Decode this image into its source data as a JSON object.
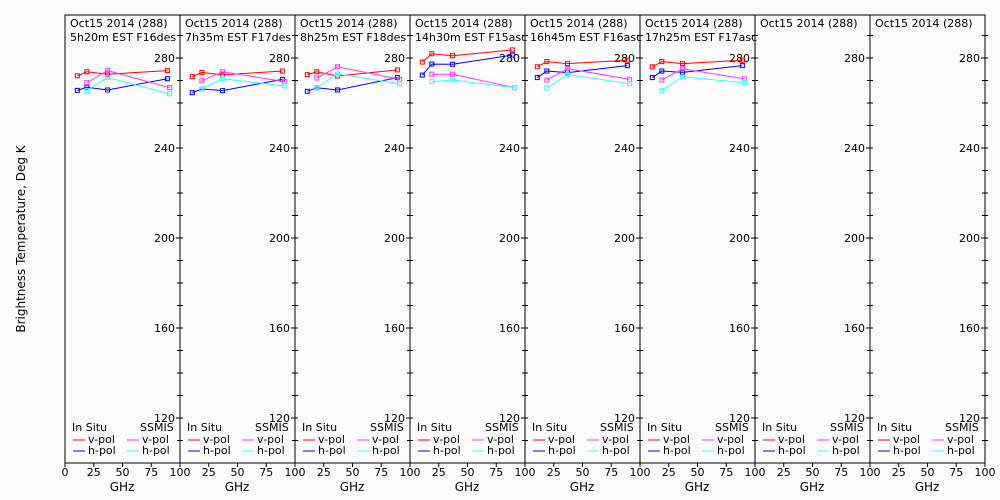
{
  "chart_data": {
    "type": "line",
    "ylabel": "Brightness Temperature, Deg K",
    "xlabel": "GHz",
    "xlim": [
      0,
      100
    ],
    "ylim": [
      100,
      300
    ],
    "xticks": [
      0,
      25,
      50,
      75,
      100
    ],
    "yticks": [
      120,
      160,
      200,
      240,
      280
    ],
    "legend": {
      "insitu_label": "In Situ",
      "ssmis_label": "SSMIS",
      "v_label": "v-pol",
      "h_label": "h-pol",
      "placement": "bottom"
    },
    "colors": {
      "insitu_v": "#ff0000",
      "insitu_h": "#0000ff",
      "ssmis_v": "#ff33ff",
      "ssmis_h": "#33ffff"
    },
    "insitu_freqs": [
      10.7,
      19,
      37,
      89
    ],
    "ssmis_freqs": [
      19,
      37,
      91
    ],
    "panels": [
      {
        "title": "Oct15 2014 (288)",
        "subtitle": "5h20m EST F16des",
        "insitu_v": [
          272.1,
          273.9,
          272.8,
          274.4
        ],
        "insitu_h": [
          265.6,
          267.0,
          265.8,
          270.8
        ],
        "ssmis_v": [
          269.0,
          274.4,
          266.8
        ],
        "ssmis_h": [
          265.5,
          271.3,
          264.1
        ]
      },
      {
        "title": "Oct15 2014 (288)",
        "subtitle": "7h35m EST F17des",
        "insitu_v": [
          271.7,
          273.6,
          272.5,
          274.2
        ],
        "insitu_h": [
          264.6,
          266.2,
          265.5,
          270.5
        ],
        "ssmis_v": [
          269.9,
          273.9,
          269.5
        ],
        "ssmis_h": [
          266.2,
          270.8,
          267.6
        ]
      },
      {
        "title": "Oct15 2014 (288)",
        "subtitle": "8h25m EST F18des",
        "insitu_v": [
          272.6,
          273.9,
          272.0,
          274.7
        ],
        "insitu_h": [
          265.2,
          266.8,
          265.8,
          271.3
        ],
        "ssmis_v": [
          271.1,
          276.1,
          270.5
        ],
        "ssmis_h": [
          266.8,
          272.9,
          268.6
        ]
      },
      {
        "title": "Oct15 2014 (288)",
        "subtitle": "14h30m EST F15asc",
        "insitu_v": [
          278.2,
          281.9,
          281.0,
          283.6
        ],
        "insitu_h": [
          272.4,
          277.3,
          277.2,
          281.3
        ],
        "ssmis_v": [
          272.8,
          272.8,
          266.8
        ],
        "ssmis_h": [
          269.5,
          270.2,
          266.8
        ]
      },
      {
        "title": "Oct15 2014 (288)",
        "subtitle": "16h45m EST F16asc",
        "insitu_v": [
          276.1,
          278.4,
          277.5,
          279.0
        ],
        "insitu_h": [
          271.3,
          274.2,
          273.5,
          276.6
        ],
        "ssmis_v": [
          270.2,
          275.3,
          270.5
        ],
        "ssmis_h": [
          266.7,
          272.6,
          268.6
        ]
      },
      {
        "title": "Oct15 2014 (288)",
        "subtitle": "17h25m EST F17asc",
        "insitu_v": [
          276.1,
          278.4,
          277.5,
          279.0
        ],
        "insitu_h": [
          271.3,
          274.2,
          273.6,
          276.6
        ],
        "ssmis_v": [
          270.2,
          275.2,
          270.7
        ],
        "ssmis_h": [
          265.5,
          271.6,
          269.0
        ]
      },
      {
        "title": "Oct15 2014 (288)",
        "subtitle": "",
        "insitu_v": [],
        "insitu_h": [],
        "ssmis_v": [],
        "ssmis_h": []
      },
      {
        "title": "Oct15 2014 (288)",
        "subtitle": "",
        "insitu_v": [],
        "insitu_h": [],
        "ssmis_v": [],
        "ssmis_h": []
      }
    ]
  }
}
